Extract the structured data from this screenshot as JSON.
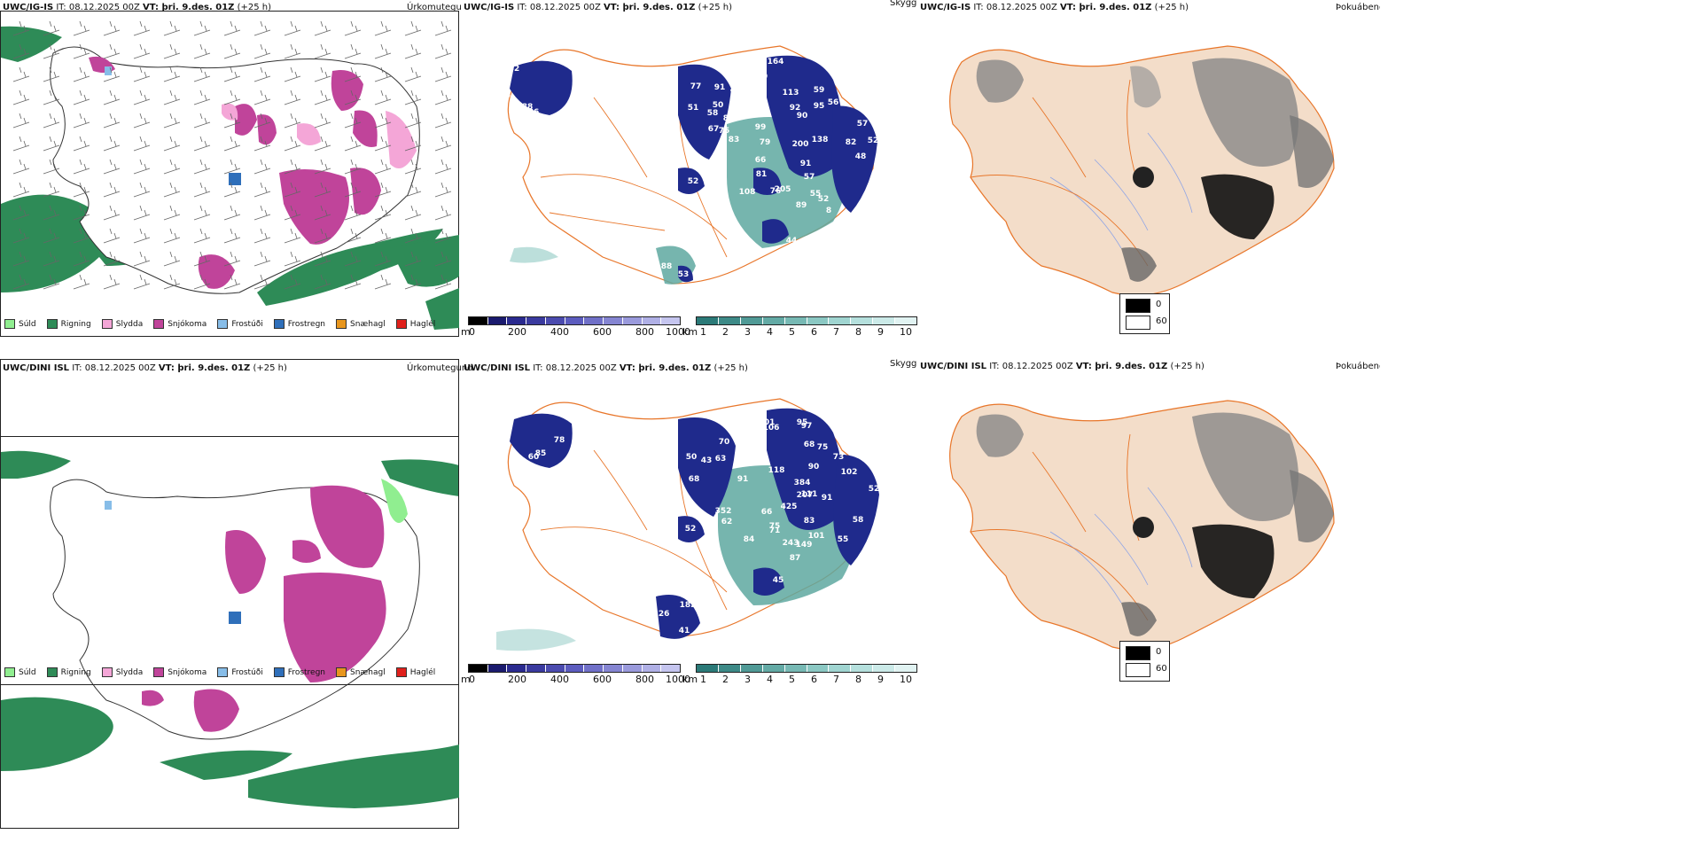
{
  "rows": [
    {
      "model_label": "UWC/IG-IS",
      "precip": {
        "header_rest": " IT: 08.12.2025 00Z ",
        "vt_label": "VT: þri. 9.des. 01Z",
        "lead": " (+25 h)",
        "title": "Úrkomutegund"
      },
      "cloud": {
        "header_rest": " IT: 08.12.2025 00Z ",
        "vt_label": "VT: þri. 9.des. 01Z",
        "lead": " (+25 h)",
        "title": "Skyggni",
        "numbers": [
          "52",
          "53",
          "65",
          "88",
          "86",
          "78",
          "77",
          "91",
          "44",
          "69",
          "51",
          "50",
          "58",
          "82",
          "75",
          "83",
          "67",
          "164",
          "113",
          "59",
          "92",
          "95",
          "56",
          "90",
          "99",
          "79",
          "200",
          "138",
          "82",
          "57",
          "66",
          "91",
          "52",
          "81",
          "48",
          "57",
          "108",
          "205",
          "76",
          "55",
          "52",
          "89",
          "8",
          "44",
          "52",
          "88",
          "53"
        ]
      },
      "fog": {
        "header_rest": " IT: 08.12.2025 00Z ",
        "vt_label": "VT: þri. 9.des. 01Z",
        "lead": " (+25 h)",
        "title": "Þokuábendi"
      }
    },
    {
      "model_label": "UWC/DINI ISL",
      "precip": {
        "header_rest": " IT: 08.12.2025 00Z ",
        "vt_label": "VT: þri. 9.des. 01Z",
        "lead": " (+25 h)",
        "title": "Úrkomutegund"
      },
      "cloud": {
        "header_rest": " IT: 08.12.2025 00Z ",
        "vt_label": "VT: þri. 9.des. 01Z",
        "lead": " (+25 h)",
        "title": "Skyggni",
        "numbers": [
          "69",
          "61",
          "85",
          "78",
          "60",
          "50",
          "43",
          "70",
          "63",
          "91",
          "68",
          "352",
          "101",
          "106",
          "97",
          "95",
          "68",
          "75",
          "73",
          "90",
          "384",
          "102",
          "111",
          "70",
          "207",
          "91",
          "425",
          "83",
          "101",
          "55",
          "75",
          "66",
          "71",
          "118",
          "243",
          "149",
          "87",
          "84",
          "62",
          "52",
          "126",
          "182",
          "41",
          "45",
          "58",
          "52"
        ]
      },
      "fog": {
        "header_rest": " IT: 08.12.2025 00Z ",
        "vt_label": "VT: þri. 9.des. 01Z",
        "lead": " (+25 h)",
        "title": "Þokuábendi"
      }
    }
  ],
  "precip_legend": [
    {
      "label": "Súld",
      "color": "#90ee90"
    },
    {
      "label": "Rigning",
      "color": "#2e8b57"
    },
    {
      "label": "Slydda",
      "color": "#f4a6d7"
    },
    {
      "label": "Snjókoma",
      "color": "#c0449a"
    },
    {
      "label": "Frostúði",
      "color": "#87bde8"
    },
    {
      "label": "Frostregn",
      "color": "#2f6fba"
    },
    {
      "label": "Snæhagl",
      "color": "#e8961e"
    },
    {
      "label": "Haglél",
      "color": "#e0201c"
    }
  ],
  "ceiling_scale": {
    "unit": "m",
    "ticks": [
      "0",
      "200",
      "400",
      "600",
      "800",
      "1000"
    ],
    "colors": [
      "#000000",
      "#1a1a6e",
      "#2a2a8f",
      "#3a3a9f",
      "#4b4baf",
      "#5c5cbf",
      "#7070c8",
      "#8585d2",
      "#9a9adc",
      "#b0b0e6",
      "#c5c5ef"
    ]
  },
  "visibility_scale": {
    "unit": "km",
    "ticks": [
      "1",
      "2",
      "3",
      "4",
      "5",
      "6",
      "7",
      "8",
      "9",
      "10"
    ],
    "colors": [
      "#2b7a78",
      "#3d8a87",
      "#509a96",
      "#63aaa5",
      "#77b9b4",
      "#8bc8c3",
      "#a0d5d1",
      "#b5e0dd",
      "#cbeae8",
      "#e1f3f2"
    ]
  },
  "fog_legend": [
    {
      "label": "0",
      "color": "#000000"
    },
    {
      "label": "60",
      "color": "#ffffff"
    }
  ],
  "colors": {
    "rain": "#2e8b57",
    "snow": "#c0449a",
    "sleet": "#f4a6d7",
    "freezing_drizzle": "#87bde8",
    "low_cloud": "#1f2a8c",
    "vis": "#5ea8a0",
    "land_fog": "#f3ddc9",
    "road": "#e8762a",
    "river": "#8fa5e6"
  }
}
